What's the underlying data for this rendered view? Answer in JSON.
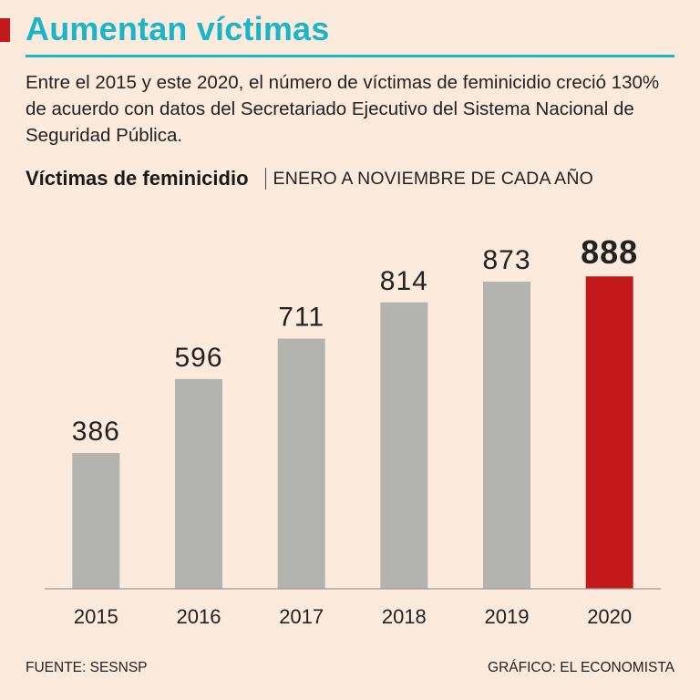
{
  "header": {
    "title": "Aumentan víctimas",
    "description": "Entre el 2015 y este 2020, el número de víctimas de feminicidio creció 130% de acuerdo con datos del Secretariado Ejecutivo del Sistema Nacional de Seguridad Pública."
  },
  "colors": {
    "accent": "#c4191b",
    "headline": "#1bb5c9",
    "bar": "#b3b3b0",
    "highlight": "#c4191b",
    "background": "#fcebdc"
  },
  "chart_data": {
    "type": "bar",
    "title": "Víctimas de feminicidio",
    "subtitle": "ENERO A NOVIEMBRE DE CADA AÑO",
    "categories": [
      "2015",
      "2016",
      "2017",
      "2018",
      "2019",
      "2020"
    ],
    "values": [
      386,
      596,
      711,
      814,
      873,
      888
    ],
    "highlight_category": "2020",
    "ylim": [
      0,
      1000
    ],
    "xlabel": "",
    "ylabel": "",
    "grid": false
  },
  "footer": {
    "source": "FUENTE: SESNSP",
    "credit": "GRÁFICO: EL ECONOMISTA"
  }
}
